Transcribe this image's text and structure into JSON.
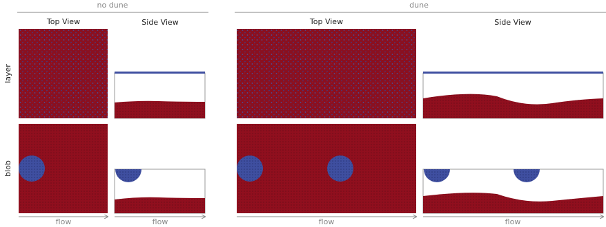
{
  "groups": [
    {
      "title": "no dune",
      "columns": [
        "Top View",
        "Side View"
      ],
      "axis_labels": [
        "flow",
        "flow"
      ]
    },
    {
      "title": "dune",
      "columns": [
        "Top View",
        "Side View"
      ],
      "axis_labels": [
        "flow",
        "flow"
      ]
    }
  ],
  "rows": [
    "layer",
    "blob"
  ]
}
